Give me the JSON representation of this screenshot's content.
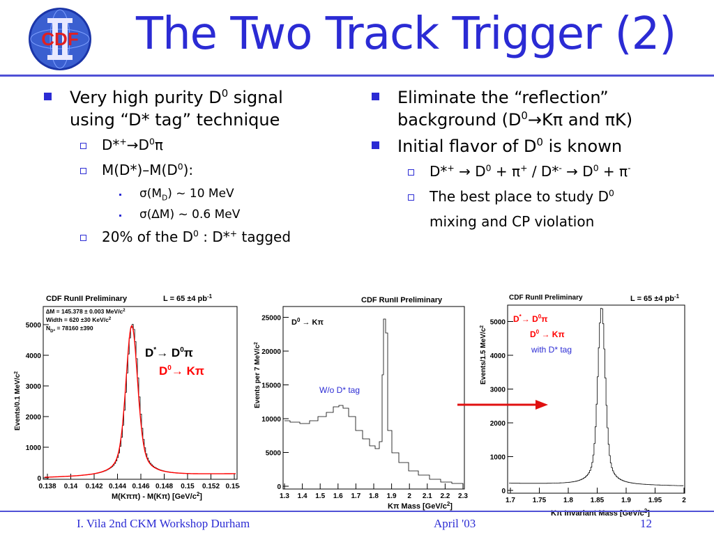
{
  "slide": {
    "title": "The Two Track Trigger (2)",
    "logo_text": "CDF",
    "accent_color": "#2b2bd4",
    "rule_color": "#4f50d6"
  },
  "left": {
    "b1_a": "Very high purity D",
    "b1_sup": "0",
    "b1_b": " signal",
    "b1_line2": "using “D* tag” technique",
    "s1_a": "D*",
    "s1_sup1": "+",
    "s1_b": "→D",
    "s1_sup2": "0",
    "s1_c": "π",
    "s2_a": "M(D*)–M(D",
    "s2_sup": "0",
    "s2_b": "):",
    "t1_a": "σ(M",
    "t1_sub": "D",
    "t1_b": ")  ~ 10 MeV",
    "t2": "σ(∆M) ~  0.6 MeV",
    "s3_a": " 20% of the D",
    "s3_sup": "0",
    "s3_b": " : D*",
    "s3_sup2": "+",
    "s3_c": "  tagged"
  },
  "right": {
    "b1_line1": "Eliminate the “reflection”",
    "b1_a": "background (D",
    "b1_sup": "0",
    "b1_b": "→Kπ and πK)",
    "b2_a": "Initial flavor of D",
    "b2_sup": "0",
    "b2_b": " is known",
    "s1_a": " D*",
    "s1_sup1": "+",
    "s1_b": " → D",
    "s1_sup2": "0",
    "s1_c": " + π",
    "s1_sup3": "+",
    "s1_d": "  / D*",
    "s1_sup4": "-",
    "s1_e": " → D",
    "s1_sup5": "0",
    "s1_f": " + π",
    "s1_sup6": "-",
    "s2_a": " The best place to study D",
    "s2_sup": "0",
    "s2_cont": "mixing and CP violation"
  },
  "plots": {
    "plot1": {
      "header": "CDF RunII Preliminary",
      "lumi": "L = 65 ±4 pb",
      "lumi_sup": "-1",
      "ylabel": "Events/0.1 MeV/c",
      "ylabel_sup": "2",
      "xlabel": "M(Kππ) - M(Kπ) [GeV/c",
      "xlabel_sup": "2",
      "xlabel_end": "]",
      "stat1": "∆M = 145.378 ± 0.003 MeV/c",
      "stat1_sup": "2",
      "stat2": "Width = 620  ±30 KeV/c",
      "stat2_sup": "2",
      "stat3_a": "N",
      "stat3_sub": "D⁰",
      "stat3_b": " = 78160 ±390",
      "label1": "D",
      "label1_sup": "*",
      "label1_b": "→ D",
      "label1_sup2": "0",
      "label1_c": "π",
      "label2": "D",
      "label2_sup": "0",
      "label2_b": "→ Kπ",
      "yticks": [
        "1000",
        "2000",
        "3000",
        "4000",
        "5000"
      ],
      "xticks": [
        "0.138",
        "0.14",
        "0.142",
        "0.144",
        "0.146",
        "0.148",
        "0.15",
        "0.152",
        "0.154"
      ],
      "y_zero": "0",
      "fit_color": "#ff0000"
    },
    "plot2": {
      "header": "CDF RunII Preliminary",
      "ylabel": "Events per 7 MeV/c",
      "ylabel_sup": "2",
      "xlabel": "Kπ Mass [GeV/c",
      "xlabel_sup": "2",
      "xlabel_end": "]",
      "label1": "D",
      "label1_sup": "0",
      "label1_b": " → Kπ",
      "note": "W/o D* tag",
      "yticks": [
        "5000",
        "10000",
        "15000",
        "20000",
        "25000"
      ],
      "y_zero": "0",
      "xticks": [
        "1.3",
        "1.4",
        "1.5",
        "1.6",
        "1.7",
        "1.8",
        "1.9",
        "2",
        "2.1",
        "2.2",
        "2.3"
      ]
    },
    "plot3": {
      "header": "CDF RunII Preliminary",
      "lumi": "L = 65 ±4 pb",
      "lumi_sup": "-1",
      "ylabel": "Events/1.5 MeV/c",
      "ylabel_sup": "2",
      "xlabel": "Kπ Invariant Mass [GeV/c",
      "xlabel_sup": "2",
      "xlabel_end": "]",
      "label1": "D",
      "label1_sup": "*",
      "label1_b": "→ D",
      "label1_sup2": "0",
      "label1_c": "π",
      "label2": "D",
      "label2_sup": "0",
      "label2_b": " → Kπ",
      "note": "with D* tag",
      "yticks": [
        "1000",
        "2000",
        "3000",
        "4000",
        "5000"
      ],
      "y_zero": "0",
      "xticks": [
        "1.7",
        "1.75",
        "1.8",
        "1.85",
        "1.9",
        "1.95",
        "2"
      ]
    }
  },
  "footer": {
    "left": "I. Vila  2nd CKM Workshop  Durham",
    "date": "April '03",
    "page": "12"
  }
}
